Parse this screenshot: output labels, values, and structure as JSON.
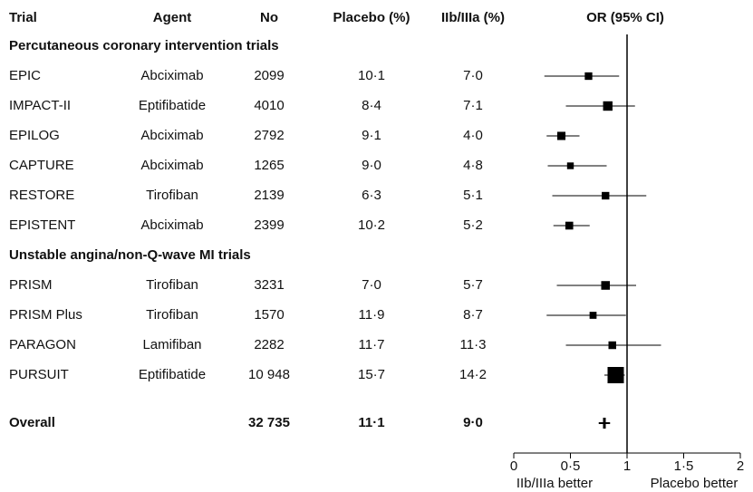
{
  "chart_data": {
    "type": "forest",
    "columns": [
      "Trial",
      "Agent",
      "No",
      "Placebo (%)",
      "IIb/IIIa (%)",
      "OR (95% CI)"
    ],
    "groups": [
      {
        "label": "Percutaneous coronary intervention trials",
        "rows": [
          {
            "trial": "EPIC",
            "agent": "Abciximab",
            "no": "2099",
            "placebo": "10·1",
            "treated": "7·0",
            "or": 0.66,
            "lo": 0.27,
            "hi": 0.93
          },
          {
            "trial": "IMPACT-II",
            "agent": "Eptifibatide",
            "no": "4010",
            "placebo": "8·4",
            "treated": "7·1",
            "or": 0.83,
            "lo": 0.46,
            "hi": 1.07
          },
          {
            "trial": "EPILOG",
            "agent": "Abciximab",
            "no": "2792",
            "placebo": "9·1",
            "treated": "4·0",
            "or": 0.42,
            "lo": 0.29,
            "hi": 0.58
          },
          {
            "trial": "CAPTURE",
            "agent": "Abciximab",
            "no": "1265",
            "placebo": "9·0",
            "treated": "4·8",
            "or": 0.5,
            "lo": 0.3,
            "hi": 0.82
          },
          {
            "trial": "RESTORE",
            "agent": "Tirofiban",
            "no": "2139",
            "placebo": "6·3",
            "treated": "5·1",
            "or": 0.81,
            "lo": 0.34,
            "hi": 1.17
          },
          {
            "trial": "EPISTENT",
            "agent": "Abciximab",
            "no": "2399",
            "placebo": "10·2",
            "treated": "5·2",
            "or": 0.49,
            "lo": 0.35,
            "hi": 0.67
          }
        ]
      },
      {
        "label": "Unstable angina/non-Q-wave MI trials",
        "rows": [
          {
            "trial": "PRISM",
            "agent": "Tirofiban",
            "no": "3231",
            "placebo": "7·0",
            "treated": "5·7",
            "or": 0.81,
            "lo": 0.38,
            "hi": 1.08
          },
          {
            "trial": "PRISM Plus",
            "agent": "Tirofiban",
            "no": "1570",
            "placebo": "11·9",
            "treated": "8·7",
            "or": 0.7,
            "lo": 0.29,
            "hi": 0.99
          },
          {
            "trial": "PARAGON",
            "agent": "Lamifiban",
            "no": "2282",
            "placebo": "11·7",
            "treated": "11·3",
            "or": 0.87,
            "lo": 0.46,
            "hi": 1.3
          },
          {
            "trial": "PURSUIT",
            "agent": "Eptifibatide",
            "no": "10 948",
            "placebo": "15·7",
            "treated": "14·2",
            "or": 0.9,
            "lo": 0.8,
            "hi": 0.98
          }
        ]
      }
    ],
    "overall": {
      "trial": "Overall",
      "no": "32 735",
      "placebo": "11·1",
      "treated": "9·0",
      "or": 0.8,
      "lo": 0.75,
      "hi": 0.85
    },
    "ref": 1,
    "xlim": [
      0,
      2
    ],
    "xticks": [
      0,
      {
        "value": 0.5,
        "label": "0·5"
      },
      1,
      {
        "value": 1.5,
        "label": "1·5"
      },
      2
    ],
    "xlabels": [
      "IIb/IIIa better",
      "Placebo better"
    ]
  }
}
